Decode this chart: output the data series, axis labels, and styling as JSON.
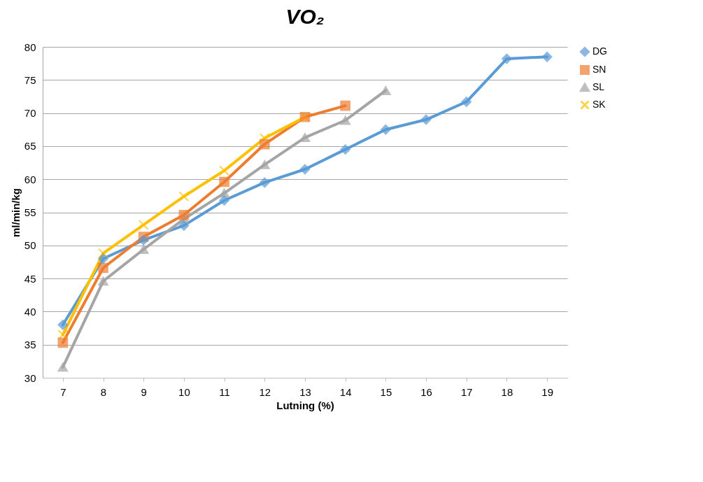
{
  "chart_data": {
    "type": "line",
    "title": "VO₂",
    "xlabel": "Lutning (%)",
    "ylabel": "ml/min/kg",
    "categories": [
      "7",
      "8",
      "9",
      "10",
      "11",
      "12",
      "13",
      "14",
      "15",
      "16",
      "17",
      "18",
      "19"
    ],
    "ylim": [
      30,
      80
    ],
    "yticks": [
      30,
      35,
      40,
      45,
      50,
      55,
      60,
      65,
      70,
      75,
      80
    ],
    "grid": "y",
    "legend": "right",
    "series": [
      {
        "name": "DG",
        "color": "#5b9bd5",
        "marker": "diamond",
        "values": [
          38.0,
          48.0,
          50.8,
          53.0,
          56.8,
          59.5,
          61.5,
          64.5,
          67.5,
          69.0,
          71.7,
          78.2,
          78.5
        ]
      },
      {
        "name": "SN",
        "color": "#ed7d31",
        "marker": "square",
        "values": [
          35.3,
          46.6,
          51.3,
          54.6,
          59.6,
          65.3,
          69.4,
          71.1,
          null,
          null,
          null,
          null,
          null
        ]
      },
      {
        "name": "SL",
        "color": "#a5a5a5",
        "marker": "triangle",
        "values": [
          31.6,
          44.6,
          49.4,
          54.0,
          57.9,
          62.2,
          66.3,
          68.9,
          73.4,
          null,
          null,
          null,
          null
        ]
      },
      {
        "name": "SK",
        "color": "#ffc000",
        "marker": "cross",
        "values": [
          36.5,
          48.8,
          53.1,
          57.4,
          61.3,
          66.2,
          69.4,
          null,
          null,
          null,
          null,
          null,
          null
        ]
      }
    ]
  }
}
